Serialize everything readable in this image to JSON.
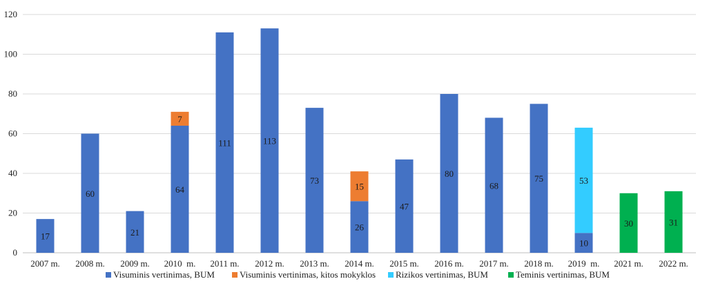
{
  "chart_data": {
    "type": "bar",
    "stacked": true,
    "categories": [
      "2007 m.",
      "2008 m.",
      "2009 m.",
      "2010  m.",
      "2011 m.",
      "2012 m.",
      "2013 m.",
      "2014 m.",
      "2015 m.",
      "2016 m.",
      "2017 m.",
      "2018 m.",
      "2019  m.",
      "2021 m.",
      "2022 m."
    ],
    "series": [
      {
        "name": "Visuminis vertinimas, BUM",
        "color": "#4472c4",
        "values": [
          17,
          60,
          21,
          64,
          111,
          113,
          73,
          26,
          47,
          80,
          68,
          75,
          10,
          null,
          null
        ]
      },
      {
        "name": "Visuminis vertinimas, kitos mokyklos",
        "color": "#ed7d31",
        "values": [
          null,
          null,
          null,
          7,
          null,
          null,
          null,
          15,
          null,
          null,
          null,
          null,
          null,
          null,
          null
        ]
      },
      {
        "name": "Rizikos vertinimas, BUM",
        "color": "#33ccff",
        "values": [
          null,
          null,
          null,
          null,
          null,
          null,
          null,
          null,
          null,
          null,
          null,
          null,
          53,
          null,
          null
        ]
      },
      {
        "name": "Teminis vertinimas, BUM",
        "color": "#00b050",
        "values": [
          null,
          null,
          null,
          null,
          null,
          null,
          null,
          null,
          null,
          null,
          null,
          null,
          null,
          30,
          31
        ]
      }
    ],
    "ylim": [
      0,
      120
    ],
    "yticks": [
      0,
      20,
      40,
      60,
      80,
      100,
      120
    ],
    "grid": true,
    "legend": "bottom",
    "title": "",
    "xlabel": "",
    "ylabel": ""
  }
}
